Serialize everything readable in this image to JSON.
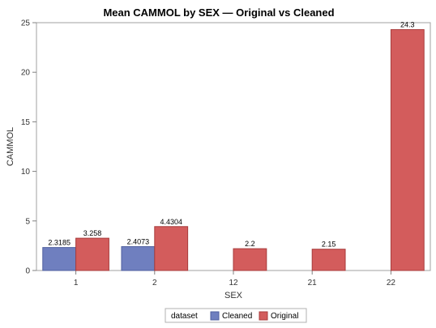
{
  "chart_data": {
    "type": "bar",
    "title": "Mean CAMMOL by SEX — Original vs Cleaned",
    "xlabel": "SEX",
    "ylabel": "CAMMOL",
    "categories": [
      "1",
      "2",
      "12",
      "21",
      "22"
    ],
    "ylim": [
      0,
      25
    ],
    "yticks": [
      0,
      5,
      10,
      15,
      20,
      25
    ],
    "grid": false,
    "legend_placement": "bottom",
    "legend_title": "dataset",
    "series": [
      {
        "name": "Cleaned",
        "color": "#6f7fbf",
        "stroke": "#4f5f9f",
        "values": [
          2.3185,
          2.4073,
          null,
          null,
          null
        ],
        "labels": [
          "2.3185",
          "2.4073",
          "",
          "",
          ""
        ]
      },
      {
        "name": "Original",
        "color": "#d35c5c",
        "stroke": "#a83c3c",
        "values": [
          3.258,
          4.4304,
          2.2,
          2.15,
          24.3
        ],
        "labels": [
          "3.258",
          "4.4304",
          "2.2",
          "2.15",
          "24.3"
        ]
      }
    ]
  }
}
